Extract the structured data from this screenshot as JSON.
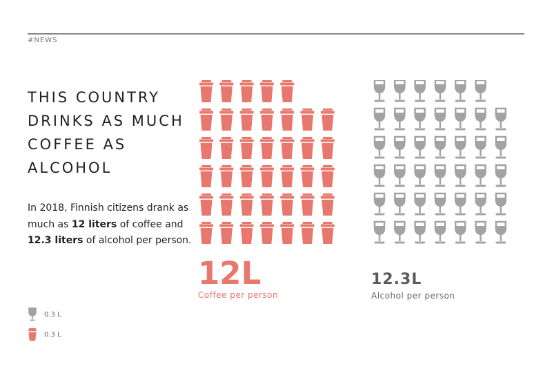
{
  "header": {
    "tag": "#NEWS"
  },
  "headline": [
    "THIS COUNTRY",
    "DRINKS AS MUCH",
    "COFFEE AS",
    "ALCOHOL"
  ],
  "body": {
    "part1": "In 2018, Finnish citizens drank as much as ",
    "bold1": "12 liters",
    "part2": " of coffee and ",
    "bold2": "12.3 liters",
    "part3": " of alcohol per person."
  },
  "legend": [
    {
      "icon": "wine-glass-icon",
      "label": "0.3 L"
    },
    {
      "icon": "coffee-cup-icon",
      "label": "0.3 L"
    }
  ],
  "colors": {
    "coffee": "#e8776d",
    "alcohol": "#a3a3a3"
  },
  "coffee": {
    "value_label": "12L",
    "caption": "Coffee per person",
    "icons": 40,
    "row_counts": [
      5,
      7,
      7,
      7,
      7,
      7
    ]
  },
  "alcohol": {
    "value_label": "12.3L",
    "caption": "Alcohol per person",
    "icons": 41,
    "row_counts": [
      6,
      7,
      7,
      7,
      7,
      7
    ]
  }
}
